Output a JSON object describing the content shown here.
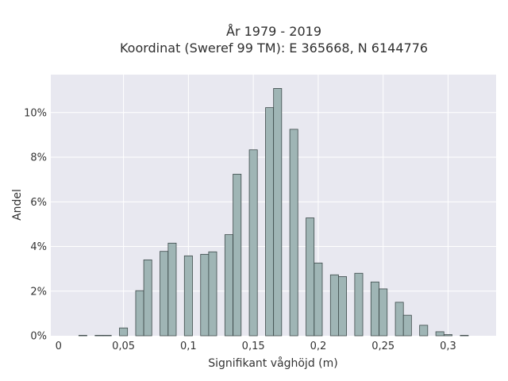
{
  "chart_data": {
    "type": "bar",
    "title_lines": [
      "År 1979 - 2019",
      "Koordinat (Sweref 99 TM): E 365668, N 6144776"
    ],
    "xlabel": "Signifikant våghöjd (m)",
    "ylabel": "Andel",
    "xlim": [
      -0.006,
      0.337
    ],
    "ylim": [
      0,
      11.7
    ],
    "x_ticks": [
      {
        "value": 0,
        "label": "0"
      },
      {
        "value": 0.05,
        "label": "0,05"
      },
      {
        "value": 0.1,
        "label": "0,1"
      },
      {
        "value": 0.15,
        "label": "0,15"
      },
      {
        "value": 0.2,
        "label": "0,2"
      },
      {
        "value": 0.25,
        "label": "0,25"
      },
      {
        "value": 0.3,
        "label": "0,3"
      }
    ],
    "y_ticks": [
      {
        "value": 0,
        "label": "0%"
      },
      {
        "value": 2,
        "label": "2%"
      },
      {
        "value": 4,
        "label": "4%"
      },
      {
        "value": 6,
        "label": "6%"
      },
      {
        "value": 8,
        "label": "8%"
      },
      {
        "value": 10,
        "label": "10%"
      }
    ],
    "bar_width": 0.0062,
    "bars": [
      {
        "x": 0.0187,
        "y": 0.02
      },
      {
        "x": 0.0312,
        "y": 0.02
      },
      {
        "x": 0.0375,
        "y": 0.02
      },
      {
        "x": 0.05,
        "y": 0.35
      },
      {
        "x": 0.0625,
        "y": 2.02
      },
      {
        "x": 0.0687,
        "y": 3.4
      },
      {
        "x": 0.0812,
        "y": 3.78
      },
      {
        "x": 0.0875,
        "y": 4.15
      },
      {
        "x": 0.1,
        "y": 3.58
      },
      {
        "x": 0.1125,
        "y": 3.65
      },
      {
        "x": 0.1187,
        "y": 3.76
      },
      {
        "x": 0.1312,
        "y": 4.53
      },
      {
        "x": 0.1375,
        "y": 7.24
      },
      {
        "x": 0.15,
        "y": 8.33
      },
      {
        "x": 0.1625,
        "y": 10.22
      },
      {
        "x": 0.1687,
        "y": 11.08
      },
      {
        "x": 0.1812,
        "y": 9.25
      },
      {
        "x": 0.1937,
        "y": 5.28
      },
      {
        "x": 0.2,
        "y": 3.26
      },
      {
        "x": 0.2125,
        "y": 2.73
      },
      {
        "x": 0.2187,
        "y": 2.65
      },
      {
        "x": 0.2312,
        "y": 2.8
      },
      {
        "x": 0.2437,
        "y": 2.41
      },
      {
        "x": 0.25,
        "y": 2.1
      },
      {
        "x": 0.2625,
        "y": 1.5
      },
      {
        "x": 0.2687,
        "y": 0.92
      },
      {
        "x": 0.2812,
        "y": 0.47
      },
      {
        "x": 0.2937,
        "y": 0.18
      },
      {
        "x": 0.3,
        "y": 0.05
      },
      {
        "x": 0.3125,
        "y": 0.02
      }
    ],
    "grid": true,
    "colors": {
      "bar_fill": "#9fb5b5",
      "bar_stroke": "#3d4a4a",
      "plot_bg": "#e8e8f0",
      "grid": "#ffffff"
    }
  }
}
